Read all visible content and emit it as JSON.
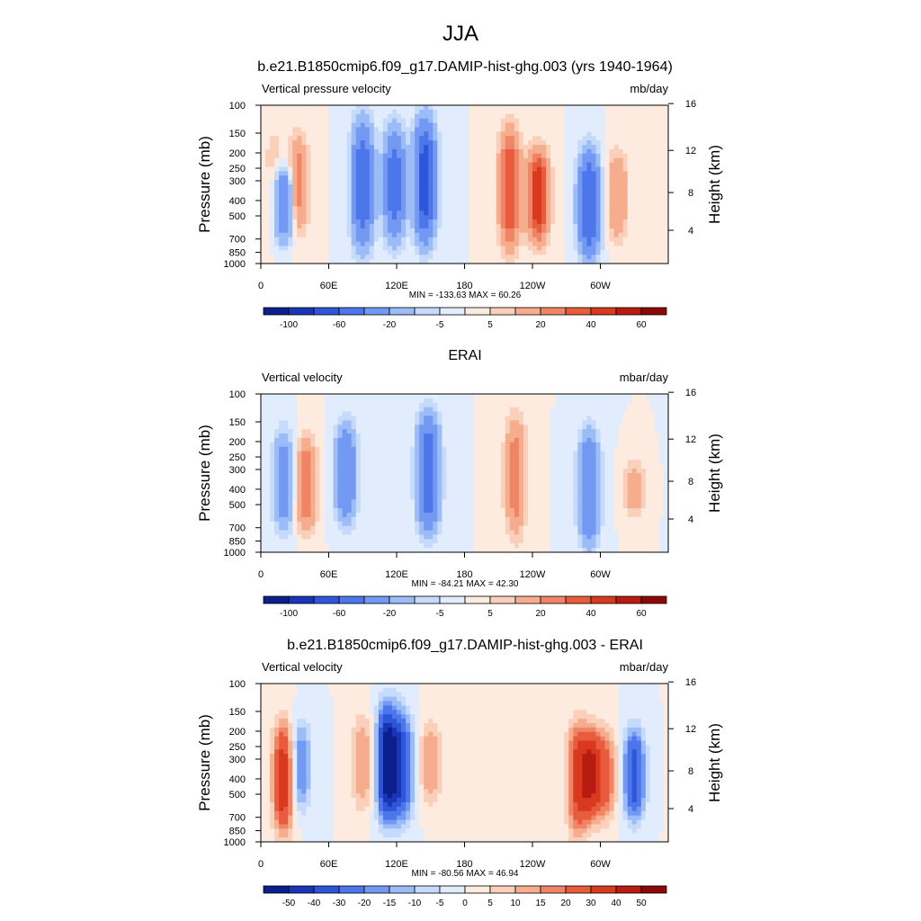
{
  "figure": {
    "title": "JJA"
  },
  "chart_data": [
    {
      "type": "heatmap",
      "title": "b.e21.B1850cmip6.f09_g17.DAMIP-hist-ghg.003 (yrs 1940-1964)",
      "left_label": "Vertical pressure velocity",
      "units": "mb/day",
      "ylabel": "Pressure (mb)",
      "ylabel_right": "Height (km)",
      "x_ticks": [
        "0",
        "60E",
        "120E",
        "180",
        "120W",
        "60W"
      ],
      "x_tick_values": [
        0,
        60,
        120,
        180,
        240,
        300
      ],
      "xlim": [
        0,
        360
      ],
      "y_ticks": [
        "100",
        "150",
        "200",
        "250",
        "300",
        "400",
        "500",
        "700",
        "850",
        "1000"
      ],
      "y_tick_values": [
        100,
        150,
        200,
        250,
        300,
        400,
        500,
        700,
        850,
        1000
      ],
      "ylim": [
        1000,
        100
      ],
      "y_scale": "log",
      "right_ticks": [
        "4",
        "8",
        "12",
        "16"
      ],
      "right_tick_values": [
        4,
        8,
        12,
        16
      ],
      "stats": "MIN = -133.63  MAX =  60.26",
      "min": -133.63,
      "max": 60.26,
      "colorbar_labels": [
        "-100",
        "-60",
        "-20",
        "-5",
        "5",
        "20",
        "40",
        "60"
      ],
      "colorbar_label_slots": [
        1,
        3,
        5,
        7,
        9,
        11,
        13,
        15
      ],
      "colorbar_colors": [
        "#0b1f8f",
        "#1a35b8",
        "#2f55d8",
        "#4d76ea",
        "#7399f2",
        "#9cbcf7",
        "#c6dafb",
        "#e1ecfd",
        "#fdebdf",
        "#fbd0ba",
        "#f6ad8e",
        "#f08566",
        "#e85c3d",
        "#d8391f",
        "#b81c10",
        "#8c0a06"
      ],
      "features": [
        {
          "lon": 12,
          "v": 10,
          "pl": 90,
          "pt": 10
        },
        {
          "lon": 20,
          "v": -40,
          "pl": 90,
          "pt": 35
        },
        {
          "lon": 33,
          "v": 25,
          "pl": 85,
          "pt": 15
        },
        {
          "lon": 90,
          "v": -55,
          "pl": 95,
          "pt": 5
        },
        {
          "lon": 118,
          "v": -50,
          "pl": 90,
          "pt": 10
        },
        {
          "lon": 145,
          "v": -70,
          "pl": 90,
          "pt": 5
        },
        {
          "lon": 220,
          "v": 40,
          "pl": 95,
          "pt": 10
        },
        {
          "lon": 245,
          "v": 50,
          "pl": 90,
          "pt": 25
        },
        {
          "lon": 290,
          "v": -60,
          "pl": 100,
          "pt": 25
        },
        {
          "lon": 315,
          "v": 20,
          "pl": 90,
          "pt": 25
        }
      ]
    },
    {
      "type": "heatmap",
      "title": "ERAI",
      "left_label": "Vertical velocity",
      "units": "mbar/day",
      "ylabel": "Pressure (mb)",
      "ylabel_right": "Height (km)",
      "x_ticks": [
        "0",
        "60E",
        "120E",
        "180",
        "120W",
        "60W"
      ],
      "x_tick_values": [
        0,
        60,
        120,
        180,
        240,
        300
      ],
      "xlim": [
        0,
        360
      ],
      "y_ticks": [
        "100",
        "150",
        "200",
        "250",
        "300",
        "400",
        "500",
        "700",
        "850",
        "1000"
      ],
      "y_tick_values": [
        100,
        150,
        200,
        250,
        300,
        400,
        500,
        700,
        850,
        1000
      ],
      "ylim": [
        1000,
        100
      ],
      "y_scale": "log",
      "right_ticks": [
        "4",
        "8",
        "12",
        "16"
      ],
      "right_tick_values": [
        4,
        8,
        12,
        16
      ],
      "stats": "MIN = -84.21  MAX =  42.30",
      "min": -84.21,
      "max": 42.3,
      "colorbar_labels": [
        "-100",
        "-60",
        "-20",
        "-5",
        "5",
        "20",
        "40",
        "60"
      ],
      "colorbar_label_slots": [
        1,
        3,
        5,
        7,
        9,
        11,
        13,
        15
      ],
      "colorbar_colors": [
        "#0b1f8f",
        "#1a35b8",
        "#2f55d8",
        "#4d76ea",
        "#7399f2",
        "#9cbcf7",
        "#c6dafb",
        "#e1ecfd",
        "#fdebdf",
        "#fbd0ba",
        "#f6ad8e",
        "#f08566",
        "#e85c3d",
        "#d8391f",
        "#b81c10",
        "#8c0a06"
      ],
      "features": [
        {
          "lon": 20,
          "v": -30,
          "pl": 90,
          "pt": 20
        },
        {
          "lon": 40,
          "v": 30,
          "pl": 90,
          "pt": 25
        },
        {
          "lon": 75,
          "v": -40,
          "pl": 85,
          "pt": 15
        },
        {
          "lon": 148,
          "v": -60,
          "pl": 90,
          "pt": 10
        },
        {
          "lon": 225,
          "v": 25,
          "pl": 95,
          "pt": 10
        },
        {
          "lon": 290,
          "v": -40,
          "pl": 100,
          "pt": 20
        },
        {
          "lon": 330,
          "v": 15,
          "pl": 80,
          "pt": 40
        }
      ]
    },
    {
      "type": "heatmap",
      "title": "b.e21.B1850cmip6.f09_g17.DAMIP-hist-ghg.003 - ERAI",
      "left_label": "Vertical velocity",
      "units": "mbar/day",
      "ylabel": "Pressure (mb)",
      "ylabel_right": "Height (km)",
      "x_ticks": [
        "0",
        "60E",
        "120E",
        "180",
        "120W",
        "60W"
      ],
      "x_tick_values": [
        0,
        60,
        120,
        180,
        240,
        300
      ],
      "xlim": [
        0,
        360
      ],
      "y_ticks": [
        "100",
        "150",
        "200",
        "250",
        "300",
        "400",
        "500",
        "700",
        "850",
        "1000"
      ],
      "y_tick_values": [
        100,
        150,
        200,
        250,
        300,
        400,
        500,
        700,
        850,
        1000
      ],
      "ylim": [
        1000,
        100
      ],
      "y_scale": "log",
      "right_ticks": [
        "4",
        "8",
        "12",
        "16"
      ],
      "right_tick_values": [
        4,
        8,
        12,
        16
      ],
      "stats": "MIN = -80.56  MAX =  46.94",
      "min": -80.56,
      "max": 46.94,
      "colorbar_labels": [
        "-50",
        "-40",
        "-30",
        "-20",
        "-15",
        "-10",
        "-5",
        "0",
        "5",
        "10",
        "15",
        "20",
        "30",
        "40",
        "50"
      ],
      "colorbar_label_slots": [
        1,
        2,
        3,
        4,
        5,
        6,
        7,
        8,
        9,
        10,
        11,
        12,
        13,
        14,
        15
      ],
      "colorbar_colors": [
        "#0b1f8f",
        "#1a35b8",
        "#2f55d8",
        "#4d76ea",
        "#7399f2",
        "#9cbcf7",
        "#c6dafb",
        "#e1ecfd",
        "#fdebdf",
        "#fbd0ba",
        "#f6ad8e",
        "#f08566",
        "#e85c3d",
        "#d8391f",
        "#b81c10",
        "#8c0a06"
      ],
      "features": [
        {
          "lon": 20,
          "v": 35,
          "pl": 100,
          "pt": 20
        },
        {
          "lon": 35,
          "v": -20,
          "pl": 85,
          "pt": 20
        },
        {
          "lon": 90,
          "v": 15,
          "pl": 85,
          "pt": 15
        },
        {
          "lon": 112,
          "v": -55,
          "pl": 90,
          "pt": 10
        },
        {
          "lon": 125,
          "v": -35,
          "pl": 90,
          "pt": 15
        },
        {
          "lon": 150,
          "v": 15,
          "pl": 80,
          "pt": 20
        },
        {
          "lon": 280,
          "v": 30,
          "pl": 100,
          "pt": 20
        },
        {
          "lon": 292,
          "v": 35,
          "pl": 90,
          "pt": 25
        },
        {
          "lon": 305,
          "v": 20,
          "pl": 90,
          "pt": 25
        },
        {
          "lon": 330,
          "v": -35,
          "pl": 90,
          "pt": 25
        }
      ]
    }
  ]
}
